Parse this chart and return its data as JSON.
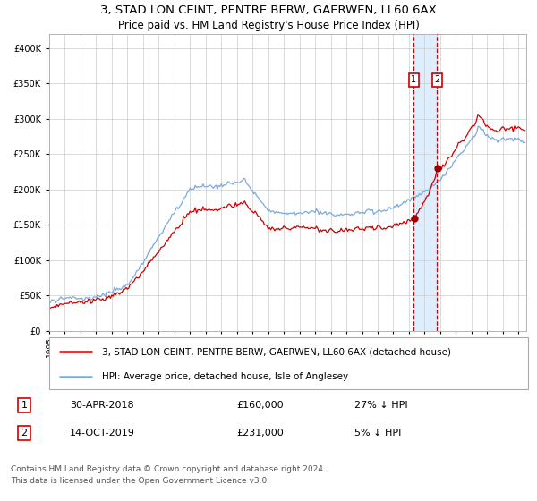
{
  "title": "3, STAD LON CEINT, PENTRE BERW, GAERWEN, LL60 6AX",
  "subtitle": "Price paid vs. HM Land Registry's House Price Index (HPI)",
  "legend_line1": "3, STAD LON CEINT, PENTRE BERW, GAERWEN, LL60 6AX (detached house)",
  "legend_line2": "HPI: Average price, detached house, Isle of Anglesey",
  "footnote1": "Contains HM Land Registry data © Crown copyright and database right 2024.",
  "footnote2": "This data is licensed under the Open Government Licence v3.0.",
  "transaction1_label": "1",
  "transaction1_date": "30-APR-2018",
  "transaction1_price": "£160,000",
  "transaction1_note": "27% ↓ HPI",
  "transaction1_year": 2018.292,
  "transaction1_value": 160000,
  "transaction2_label": "2",
  "transaction2_date": "14-OCT-2019",
  "transaction2_price": "£231,000",
  "transaction2_note": "5% ↓ HPI",
  "transaction2_year": 2019.792,
  "transaction2_value": 231000,
  "property_color": "#cc0000",
  "hpi_color": "#7aaadd",
  "highlight_color": "#ddeeff",
  "dashed_color": "#cc0000",
  "bg_color": "#ffffff",
  "grid_color": "#cccccc",
  "ylim_min": 0,
  "ylim_max": 420000,
  "xlim_min": 1995,
  "xlim_max": 2025.5,
  "title_fontsize": 9.5,
  "subtitle_fontsize": 8.5,
  "tick_fontsize": 7,
  "legend_fontsize": 7.5,
  "table_fontsize": 8,
  "footnote_fontsize": 6.5
}
